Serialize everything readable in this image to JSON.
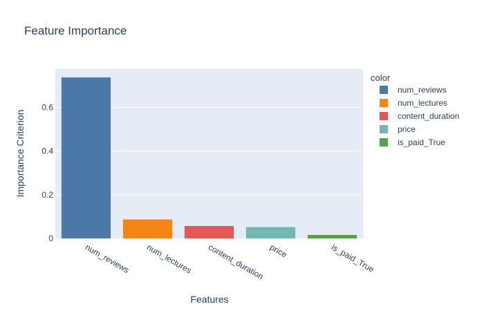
{
  "chart_data": {
    "type": "bar",
    "title": "Feature Importance",
    "xlabel": "Features",
    "ylabel": "Importance Criterion",
    "categories": [
      "num_reviews",
      "num_lectures",
      "content_duration",
      "price",
      "is_paid_True"
    ],
    "values": [
      0.737,
      0.087,
      0.057,
      0.052,
      0.016
    ],
    "colors": [
      "#4c78a8",
      "#f58518",
      "#e45756",
      "#72b7b2",
      "#54a24b"
    ],
    "ylim": [
      0,
      0.775
    ],
    "yticks": [
      0,
      0.2,
      0.4,
      0.6
    ],
    "ytick_labels": [
      "0",
      "0.2",
      "0.4",
      "0.6"
    ],
    "grid": true,
    "plot_background": "#e5ecf6",
    "legend": {
      "title": "color",
      "placement": "right",
      "items": [
        "num_reviews",
        "num_lectures",
        "content_duration",
        "price",
        "is_paid_True"
      ]
    }
  }
}
